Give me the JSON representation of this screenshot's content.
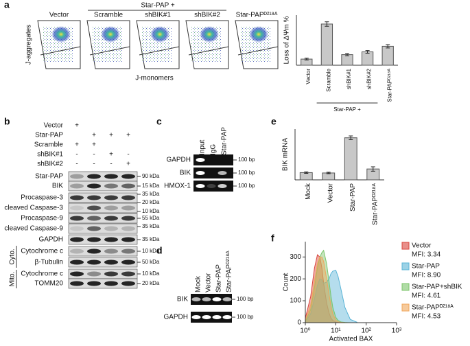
{
  "chart_data": [
    {
      "type": "bar",
      "y_label": "Loss of ΔΨm %",
      "categories": [
        "Vector",
        "Scramble",
        "shBIK#1",
        "shBIK#2",
        "Star-PAPᴰ²¹⁸ᴬ"
      ],
      "values": [
        5.5,
        37,
        9.5,
        12,
        17
      ],
      "errors": [
        0.8,
        2,
        1,
        1.2,
        1.5
      ],
      "group_label": "Star-PAP +",
      "color": "#c8c8c8",
      "ylim": [
        0,
        45
      ]
    },
    {
      "type": "bar",
      "y_label": "BIK mRNA",
      "categories": [
        "Mock",
        "Vector",
        "Star-PAP",
        "Star-PAPᴰ²¹⁸ᴬ"
      ],
      "values": [
        1,
        0.95,
        5.8,
        1.5
      ],
      "errors": [
        0.1,
        0.1,
        0.25,
        0.3
      ],
      "color": "#c8c8c8",
      "ylim": [
        0,
        7
      ]
    },
    {
      "type": "area",
      "x_label": "Activated BAX",
      "y_label": "Count",
      "log_x": true,
      "x": [
        1,
        1.5,
        2,
        2.5,
        3,
        3.5,
        4,
        5,
        6,
        7,
        8,
        10,
        12,
        15,
        20,
        30,
        50
      ],
      "series": [
        {
          "name": "Vector",
          "mfi_label": "MFI: 3.34",
          "color": "#d9443c",
          "values": [
            20,
            120,
            250,
            310,
            300,
            250,
            180,
            90,
            45,
            20,
            10,
            3,
            1,
            0,
            0,
            0,
            0
          ]
        },
        {
          "name": "Star-PAP",
          "mfi_label": "MFI: 8.90",
          "color": "#5ab4d6",
          "values": [
            5,
            40,
            110,
            170,
            200,
            195,
            180,
            185,
            200,
            225,
            235,
            240,
            210,
            150,
            70,
            15,
            2
          ]
        },
        {
          "name": "Star-PAP+shBIK",
          "mfi_label": "MFI: 4.61",
          "color": "#7cc46a",
          "values": [
            5,
            60,
            160,
            250,
            300,
            320,
            330,
            270,
            190,
            120,
            70,
            25,
            10,
            3,
            1,
            0,
            0
          ]
        },
        {
          "name": "Star-PAPᴰ²¹⁸ᴬ",
          "mfi_label": "MFI: 4.53",
          "color": "#f0a65a",
          "values": [
            10,
            80,
            190,
            270,
            300,
            300,
            280,
            200,
            130,
            75,
            40,
            12,
            4,
            1,
            0,
            0,
            0
          ]
        }
      ],
      "xlim": [
        1,
        1000
      ],
      "xticks": [
        {
          "value": 1,
          "label": "10⁰"
        },
        {
          "value": 10,
          "label": "10¹"
        },
        {
          "value": 100,
          "label": "10²"
        },
        {
          "value": 1000,
          "label": "10³"
        }
      ],
      "ylim": [
        0,
        370
      ],
      "yticks": [
        0,
        100,
        200,
        300
      ]
    }
  ],
  "panel_labels": [
    "a",
    "b",
    "c",
    "d",
    "e",
    "f"
  ],
  "panel_a": {
    "flow_titles": [
      "Vector",
      "Scramble",
      "shBIK#1",
      "shBIK#2",
      "Star-PAPᴰ²¹⁸ᴬ"
    ],
    "group_label": "Star-PAP +",
    "y_label": "J-aggregates",
    "x_label": "J-monomers"
  },
  "panel_b": {
    "conditions": [
      {
        "label": "Vector",
        "signs": [
          "+",
          null,
          null,
          null
        ]
      },
      {
        "label": "Star-PAP",
        "signs": [
          null,
          "+",
          "+",
          "+"
        ]
      },
      {
        "label": "Scramble",
        "signs": [
          "+",
          "+",
          null,
          null
        ]
      },
      {
        "label": "shBIK#1",
        "signs": [
          "-",
          "-",
          "+",
          "-"
        ]
      },
      {
        "label": "shBIK#2",
        "signs": [
          "-",
          "-",
          "-",
          "+"
        ]
      }
    ],
    "rows": [
      "Star-PAP",
      "BIK",
      "Procaspase-3",
      "cleaved Caspase-3",
      "Procaspase-9",
      "cleaved Caspase-9",
      "GAPDH",
      "Cytochrome c",
      "β-Tubulin",
      "Cytochrome c",
      "TOMM20"
    ],
    "groups": [
      "Cyto.",
      "Mito."
    ],
    "markers": [
      "90 kDa",
      "15 kDa",
      "35 kDa",
      "20 kDa",
      "10 kDa",
      "55 kDa",
      "35 kDa",
      "35 kDa",
      "10 kDa",
      "50 kDa",
      "10 kDa",
      "20 kDa"
    ]
  },
  "panel_c": {
    "lanes": [
      "Input",
      "IgG",
      "Star-PAP"
    ],
    "rows": [
      "GAPDH",
      "BIK",
      "HMOX-1"
    ],
    "marker": "100 bp"
  },
  "panel_d": {
    "lanes": [
      "Mock",
      "Vector",
      "Star-PAP",
      "Star-PAPᴰ²¹⁸ᴬ"
    ],
    "rows": [
      "BIK",
      "GAPDH"
    ],
    "marker": "100 bp"
  }
}
